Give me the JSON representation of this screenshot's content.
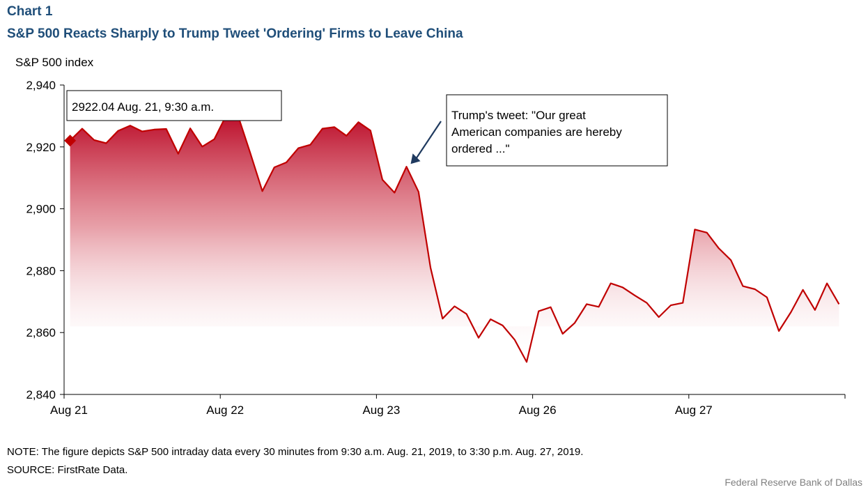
{
  "chart_label": "Chart 1",
  "title": "S&P 500 Reacts Sharply to Trump Tweet 'Ordering' Firms to Leave China",
  "ylabel": "S&P 500 index",
  "note": "NOTE: The figure depicts S&P 500 intraday data every 30 minutes from 9:30 a.m. Aug. 21, 2019, to 3:30 p.m. Aug. 27, 2019.",
  "source": "SOURCE: FirstRate Data.",
  "credit": "Federal Reserve  Bank of Dallas",
  "colors": {
    "line": "#c00000",
    "fill_top": "#c00000",
    "title": "#1f4e79",
    "arrow": "#1f3a5f"
  },
  "chart_data": {
    "type": "area",
    "title": "S&P 500 Reacts Sharply to Trump Tweet 'Ordering' Firms to Leave China",
    "xlabel": "",
    "ylabel": "S&P 500 index",
    "ylim": [
      2840,
      2940
    ],
    "yticks": [
      2840,
      2860,
      2880,
      2900,
      2920,
      2940
    ],
    "ytick_labels": [
      "2,840",
      "2,860",
      "2,880",
      "2,900",
      "2,920",
      "2,940"
    ],
    "x_tick_labels": [
      "Aug 21",
      "Aug 22",
      "Aug 23",
      "Aug 26",
      "Aug 27"
    ],
    "points_per_day": 13,
    "grid": false,
    "legend": "none",
    "series": [
      {
        "values": [
          2922.04,
          2925.9,
          2922.2,
          2921.2,
          2925.2,
          2926.9,
          2925.0,
          2925.6,
          2925.8,
          2917.8,
          2926.0,
          2920.1,
          2922.5,
          2930.2,
          2929.8,
          2918.0,
          2905.7,
          2913.4,
          2915.0,
          2919.6,
          2920.7,
          2925.9,
          2926.4,
          2923.6,
          2928.0,
          2925.3,
          2909.4,
          2905.2,
          2913.6,
          2905.5,
          2881.0,
          2864.5,
          2868.5,
          2866.0,
          2858.3,
          2864.3,
          2862.3,
          2857.7,
          2850.5,
          2866.9,
          2868.2,
          2859.6,
          2863.1,
          2869.2,
          2868.3,
          2875.9,
          2874.6,
          2872.0,
          2869.6,
          2865.0,
          2868.8,
          2869.6,
          2893.3,
          2892.3,
          2887.2,
          2883.4,
          2875.0,
          2874.0,
          2871.4,
          2860.5,
          2866.6,
          2873.8,
          2867.3,
          2875.9,
          2869.2
        ]
      }
    ],
    "annotations": [
      {
        "type": "callout",
        "point_index": 0,
        "text": "2922.04   Aug. 21, 9:30 a.m."
      },
      {
        "type": "arrow",
        "point_index": 28,
        "text": "Trump's tweet: \"Our great American companies are hereby ordered ...\"",
        "lines": [
          "Trump's tweet: \"Our great",
          "American companies are hereby",
          "ordered ...\""
        ]
      }
    ]
  }
}
